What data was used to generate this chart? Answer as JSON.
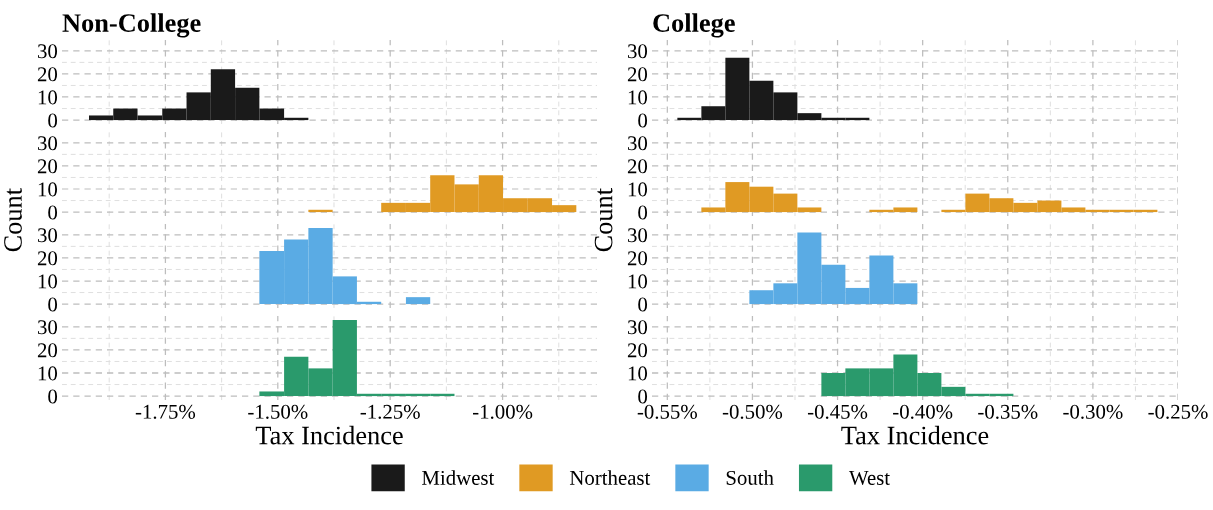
{
  "chart_data": [
    {
      "type": "histogram",
      "title": "Non-College",
      "bins": [
        -1.92,
        -1.866,
        -1.812,
        -1.757,
        -1.703,
        -1.649,
        -1.595,
        -1.541,
        -1.486,
        -1.432
      ],
      "series": [
        {
          "name": "Midwest",
          "color": "#1a1a1a",
          "values": [
            2,
            5,
            2,
            5,
            12,
            22,
            14,
            5,
            1
          ]
        }
      ],
      "xlim": [
        -1.98,
        -0.79
      ],
      "xticks": [
        {
          "value": -1.75,
          "label": null
        },
        {
          "value": -1.5,
          "label": null
        },
        {
          "value": -1.25,
          "label": null
        },
        {
          "value": -1.0,
          "label": null
        }
      ],
      "ylim": [
        -1.7,
        34.7
      ],
      "yticks": [
        0,
        10,
        20,
        30
      ],
      "grid": true,
      "tick_labels": "y",
      "legend": "bottom"
    },
    {
      "type": "histogram",
      "ylabel": "Count",
      "bins": [
        -1.432,
        -1.378,
        -1.324,
        -1.27,
        -1.215,
        -1.161,
        -1.107,
        -1.053,
        -0.999,
        -0.944,
        -0.89,
        -0.836
      ],
      "series": [
        {
          "name": "Northeast",
          "color": "#e09a23",
          "values": [
            1,
            0,
            0,
            4,
            4,
            16,
            12,
            16,
            6,
            6,
            3
          ]
        }
      ],
      "xlim": [
        -1.98,
        -0.79
      ],
      "xticks": [
        {
          "value": -1.75,
          "label": null
        },
        {
          "value": -1.5,
          "label": null
        },
        {
          "value": -1.25,
          "label": null
        },
        {
          "value": -1.0,
          "label": null
        }
      ],
      "ylim": [
        -1.7,
        34.7
      ],
      "yticks": [
        0,
        10,
        20,
        30
      ],
      "grid": true,
      "tick_labels": "y",
      "legend": "bottom"
    },
    {
      "type": "histogram",
      "bins": [
        -1.541,
        -1.486,
        -1.432,
        -1.378,
        -1.324,
        -1.27,
        -1.215,
        -1.161
      ],
      "series": [
        {
          "name": "South",
          "color": "#5aabe4",
          "values": [
            23,
            28,
            33,
            12,
            1,
            0,
            3
          ]
        }
      ],
      "xlim": [
        -1.98,
        -0.79
      ],
      "xticks": [
        {
          "value": -1.75,
          "label": null
        },
        {
          "value": -1.5,
          "label": null
        },
        {
          "value": -1.25,
          "label": null
        },
        {
          "value": -1.0,
          "label": null
        }
      ],
      "ylim": [
        -1.7,
        34.7
      ],
      "yticks": [
        0,
        10,
        20,
        30
      ],
      "grid": true,
      "tick_labels": "y",
      "legend": "bottom"
    },
    {
      "type": "histogram",
      "xlabel": "Tax Incidence",
      "bins": [
        -1.541,
        -1.486,
        -1.432,
        -1.378,
        -1.324,
        -1.27,
        -1.215,
        -1.161,
        -1.107
      ],
      "series": [
        {
          "name": "West",
          "color": "#2a9a6c",
          "values": [
            2,
            17,
            12,
            33,
            1,
            1,
            1,
            1
          ]
        }
      ],
      "xlim": [
        -1.98,
        -0.79
      ],
      "xticks": [
        {
          "value": -1.75,
          "label": "-1.75%"
        },
        {
          "value": -1.5,
          "label": "-1.50%"
        },
        {
          "value": -1.25,
          "label": "-1.25%"
        },
        {
          "value": -1.0,
          "label": "-1.00%"
        }
      ],
      "ylim": [
        -1.7,
        34.7
      ],
      "yticks": [
        0,
        10,
        20,
        30
      ],
      "grid": true,
      "legend": "bottom"
    },
    {
      "type": "histogram",
      "title": "College",
      "bins": [
        -0.5441,
        -0.53,
        -0.5159,
        -0.5018,
        -0.4877,
        -0.4736,
        -0.4595,
        -0.4454,
        -0.4313
      ],
      "series": [
        {
          "name": "Midwest",
          "color": "#1a1a1a",
          "values": [
            1,
            6,
            27,
            17,
            12,
            3,
            1,
            1
          ]
        }
      ],
      "xlim": [
        -0.559,
        -0.25
      ],
      "xticks": [
        {
          "value": -0.55,
          "label": null
        },
        {
          "value": -0.5,
          "label": null
        },
        {
          "value": -0.45,
          "label": null
        },
        {
          "value": -0.4,
          "label": null
        },
        {
          "value": -0.35,
          "label": null
        },
        {
          "value": -0.3,
          "label": null
        },
        {
          "value": -0.25,
          "label": null
        }
      ],
      "ylim": [
        -1.7,
        34.7
      ],
      "yticks": [
        0,
        10,
        20,
        30
      ],
      "grid": true,
      "tick_labels": "y",
      "legend": "bottom"
    },
    {
      "type": "histogram",
      "ylabel": "Count",
      "bins": [
        -0.53,
        -0.5159,
        -0.5018,
        -0.4877,
        -0.4736,
        -0.4595,
        -0.4454,
        -0.4313,
        -0.4172,
        -0.4031,
        -0.389,
        -0.3749,
        -0.3608,
        -0.3467,
        -0.3326,
        -0.3185,
        -0.3044,
        -0.2903,
        -0.2762,
        -0.2621
      ],
      "series": [
        {
          "name": "Northeast",
          "color": "#e09a23",
          "values": [
            2,
            13,
            11,
            8,
            2,
            0,
            0,
            1,
            2,
            0,
            1,
            8,
            6,
            4,
            5,
            2,
            1,
            1,
            1
          ]
        }
      ],
      "xlim": [
        -0.559,
        -0.25
      ],
      "xticks": [
        {
          "value": -0.55,
          "label": null
        },
        {
          "value": -0.5,
          "label": null
        },
        {
          "value": -0.45,
          "label": null
        },
        {
          "value": -0.4,
          "label": null
        },
        {
          "value": -0.35,
          "label": null
        },
        {
          "value": -0.3,
          "label": null
        },
        {
          "value": -0.25,
          "label": null
        }
      ],
      "ylim": [
        -1.7,
        34.7
      ],
      "yticks": [
        0,
        10,
        20,
        30
      ],
      "grid": true,
      "tick_labels": "y",
      "legend": "bottom"
    },
    {
      "type": "histogram",
      "bins": [
        -0.5018,
        -0.4877,
        -0.4736,
        -0.4595,
        -0.4454,
        -0.4313,
        -0.4172,
        -0.4031
      ],
      "series": [
        {
          "name": "South",
          "color": "#5aabe4",
          "values": [
            6,
            9,
            31,
            17,
            7,
            21,
            9
          ]
        }
      ],
      "xlim": [
        -0.559,
        -0.25
      ],
      "xticks": [
        {
          "value": -0.55,
          "label": null
        },
        {
          "value": -0.5,
          "label": null
        },
        {
          "value": -0.45,
          "label": null
        },
        {
          "value": -0.4,
          "label": null
        },
        {
          "value": -0.35,
          "label": null
        },
        {
          "value": -0.3,
          "label": null
        },
        {
          "value": -0.25,
          "label": null
        }
      ],
      "ylim": [
        -1.7,
        34.7
      ],
      "yticks": [
        0,
        10,
        20,
        30
      ],
      "grid": true,
      "tick_labels": "y",
      "legend": "bottom"
    },
    {
      "type": "histogram",
      "xlabel": "Tax Incidence",
      "bins": [
        -0.4595,
        -0.4454,
        -0.4313,
        -0.4172,
        -0.4031,
        -0.389,
        -0.3749,
        -0.3608,
        -0.3467
      ],
      "series": [
        {
          "name": "West",
          "color": "#2a9a6c",
          "values": [
            10,
            12,
            12,
            18,
            10,
            4,
            1,
            1
          ]
        }
      ],
      "xlim": [
        -0.559,
        -0.25
      ],
      "xticks": [
        {
          "value": -0.55,
          "label": "-0.55%"
        },
        {
          "value": -0.5,
          "label": "-0.50%"
        },
        {
          "value": -0.45,
          "label": "-0.45%"
        },
        {
          "value": -0.4,
          "label": "-0.40%"
        },
        {
          "value": -0.35,
          "label": "-0.35%"
        },
        {
          "value": -0.3,
          "label": "-0.30%"
        },
        {
          "value": -0.25,
          "label": "-0.25%"
        }
      ],
      "ylim": [
        -1.7,
        34.7
      ],
      "yticks": [
        0,
        10,
        20,
        30
      ],
      "grid": true,
      "legend": "bottom"
    }
  ]
}
